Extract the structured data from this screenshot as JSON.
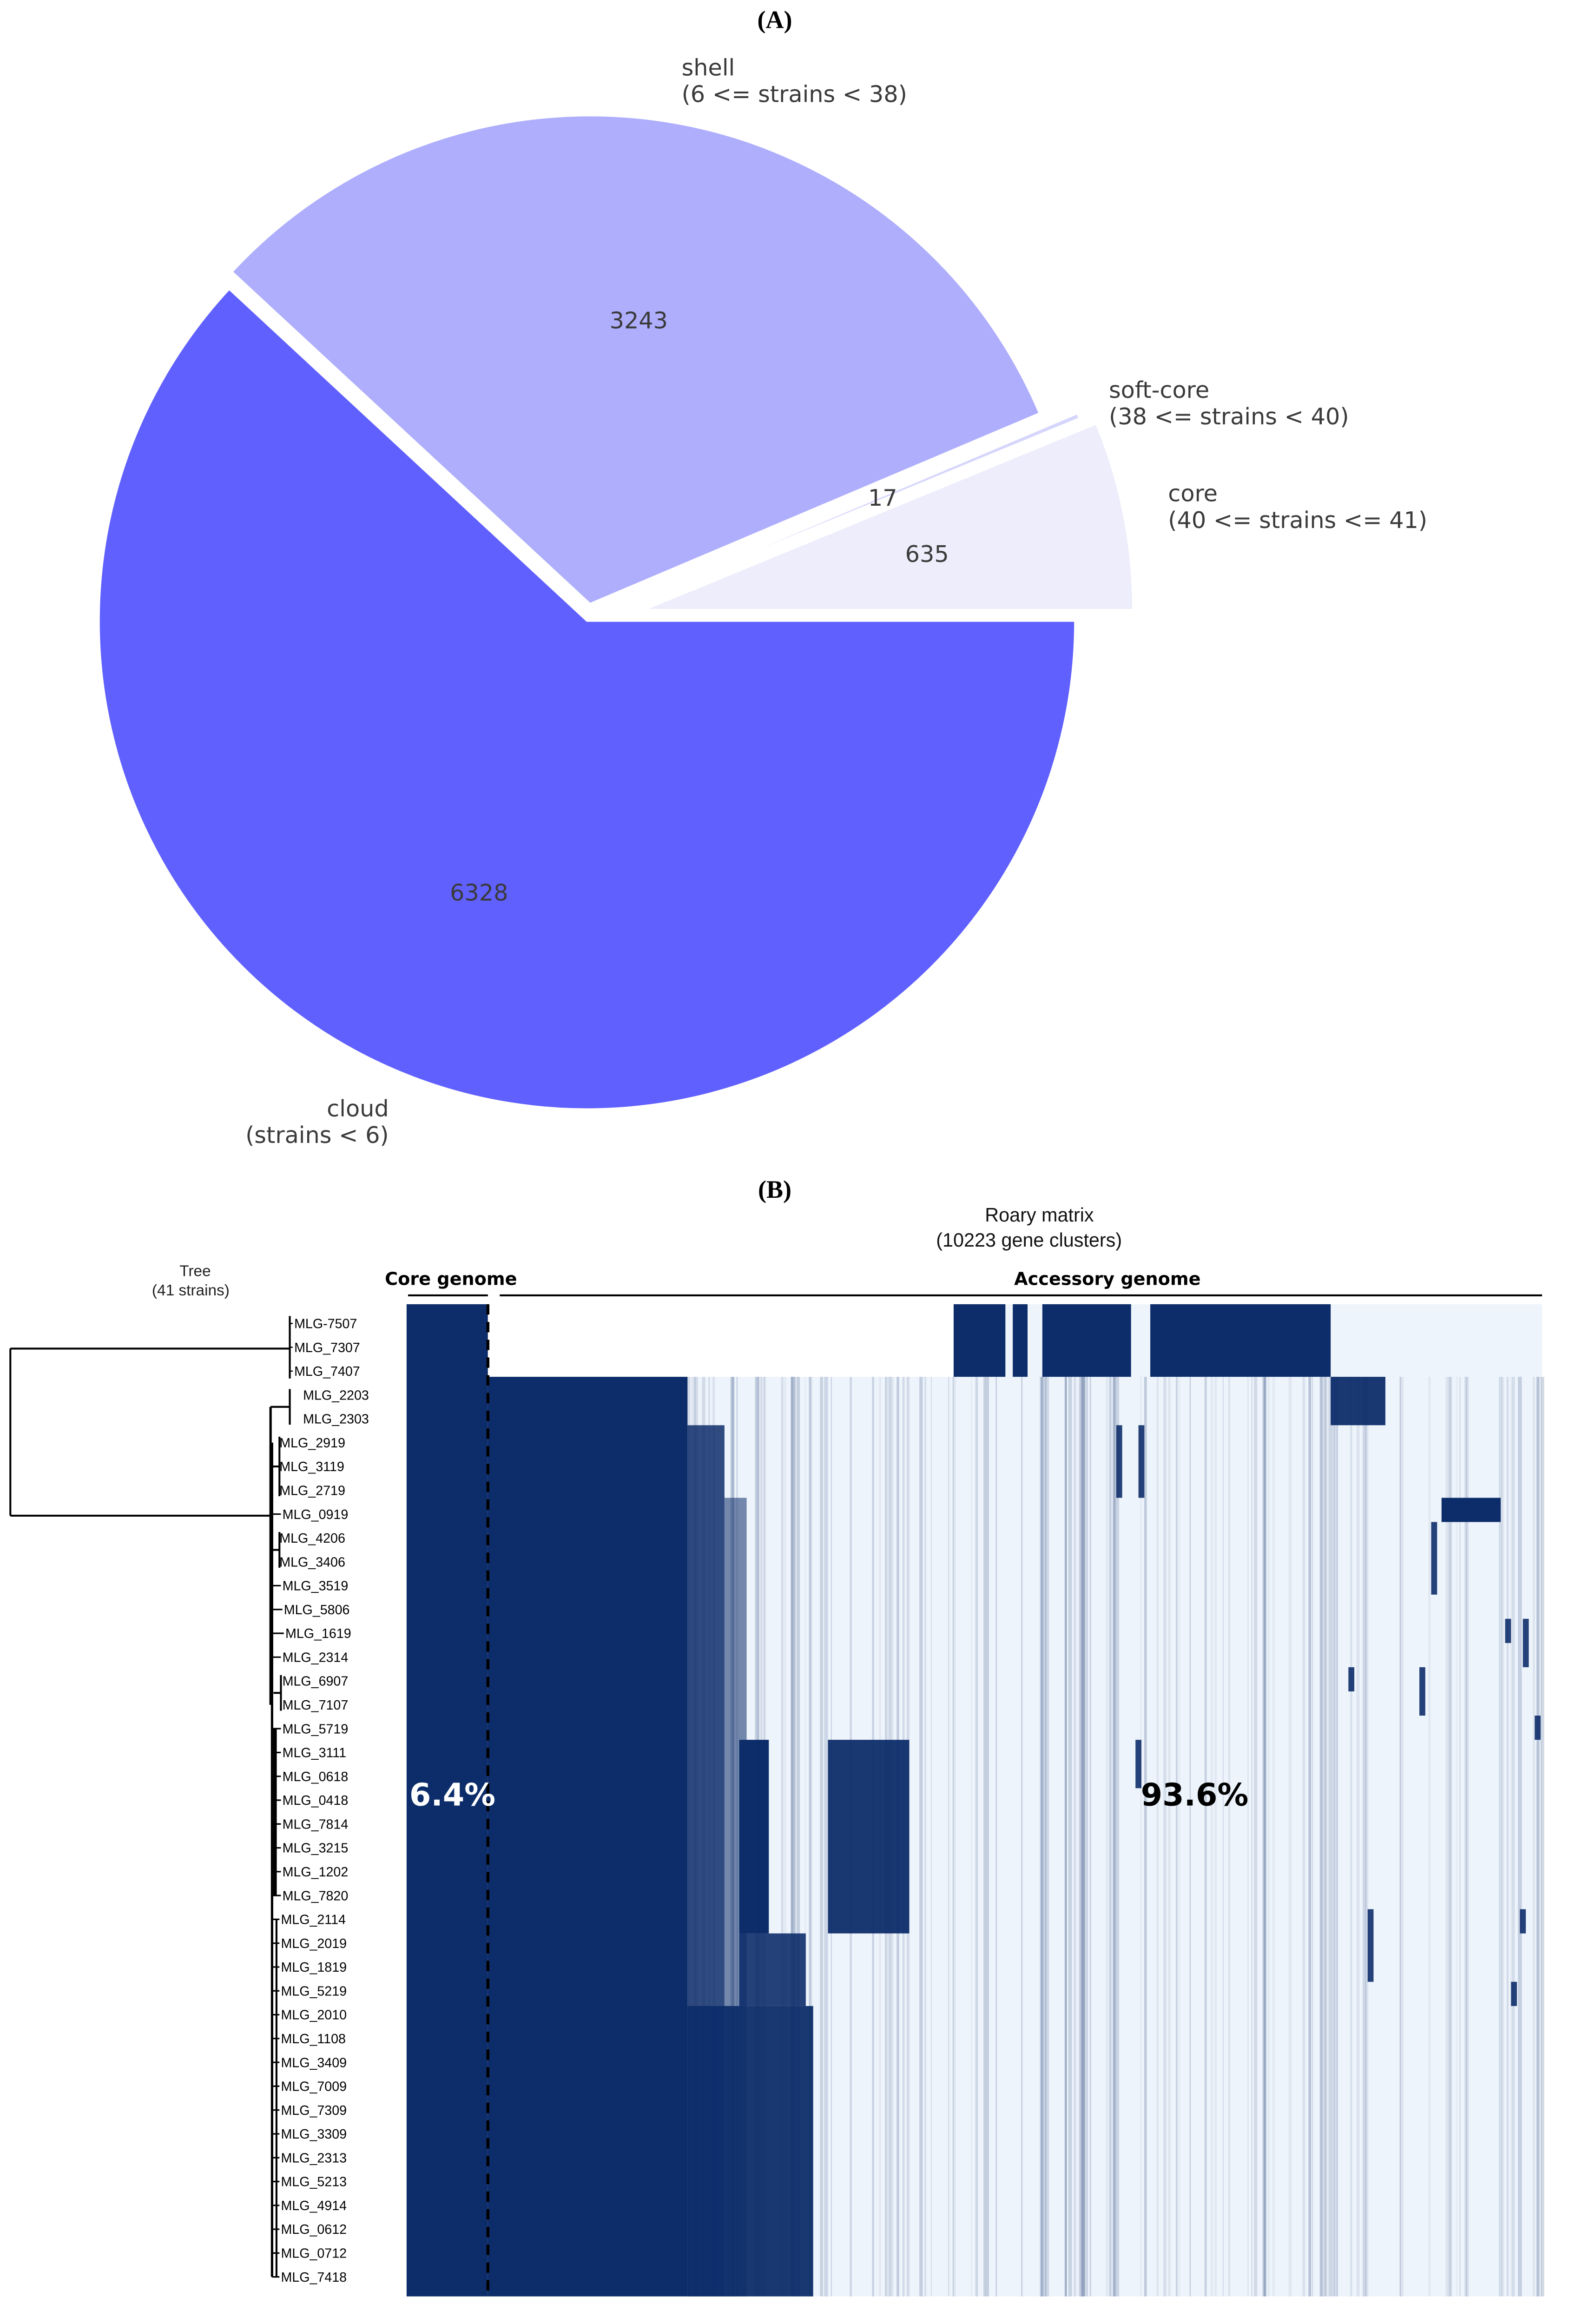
{
  "panel_a_label": "(A)",
  "panel_b_label": "(B)",
  "chart_data": [
    {
      "type": "pie",
      "title": "",
      "slices": [
        {
          "name": "core",
          "label_line1": "core",
          "label_line2": "(40 <= strains <= 41)",
          "value": 635,
          "color": "#ededfc",
          "exploded": true
        },
        {
          "name": "soft-core",
          "label_line1": "soft-core",
          "label_line2": "(38 <= strains < 40)",
          "value": 17,
          "color": "#d6d6fd",
          "exploded": true
        },
        {
          "name": "shell",
          "label_line1": "shell",
          "label_line2": "(6 <= strains < 38)",
          "value": 3243,
          "color": "#aeaefd",
          "exploded": true
        },
        {
          "name": "cloud",
          "label_line1": "cloud",
          "label_line2": "(strains < 6)",
          "value": 6328,
          "color": "#6060fe",
          "exploded": false
        }
      ],
      "start_angle_deg": 0,
      "direction": "counterclockwise"
    },
    {
      "type": "heatmap",
      "title_line1": "Roary matrix",
      "title_line2": "(10223 gene clusters)",
      "tree_title_line1": "Tree",
      "tree_title_line2": "(41 strains)",
      "core_header": "Core genome",
      "accessory_header": "Accessory genome",
      "core_percent": "6.4%",
      "accessory_percent": "93.6%",
      "present_color": "#0d2d6a",
      "absent_color": "#eef4fb",
      "strains": [
        "MLG-7507",
        "MLG_7307",
        "MLG_7407",
        "MLG_2203",
        "MLG_2303",
        "MLG_2919",
        "MLG_3119",
        "MLG_2719",
        "MLG_0919",
        "MLG_4206",
        "MLG_3406",
        "MLG_3519",
        "MLG_5806",
        "MLG_1619",
        "MLG_2314",
        "MLG_6907",
        "MLG_7107",
        "MLG_5719",
        "MLG_3111",
        "MLG_0618",
        "MLG_0418",
        "MLG_7814",
        "MLG_3215",
        "MLG_1202",
        "MLG_7820",
        "MLG_2114",
        "MLG_2019",
        "MLG_1819",
        "MLG_5219",
        "MLG_2010",
        "MLG_1108",
        "MLG_3409",
        "MLG_7009",
        "MLG_7309",
        "MLG_3309",
        "MLG_2313",
        "MLG_5213",
        "MLG_4914",
        "MLG_0612",
        "MLG_0712",
        "MLG_7418"
      ]
    }
  ]
}
